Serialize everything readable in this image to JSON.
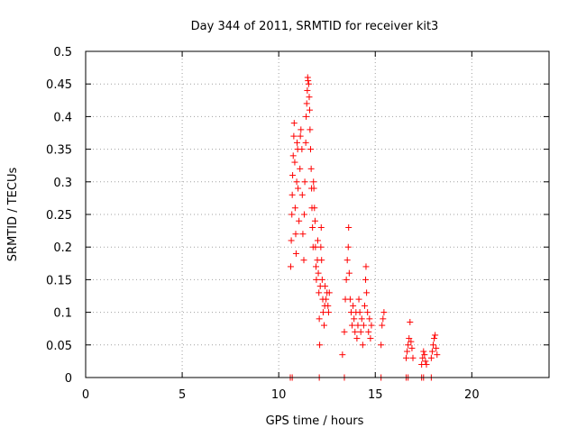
{
  "chart_data": {
    "type": "scatter",
    "title": "Day 344 of 2011, SRMTID for receiver kit3",
    "xlabel": "GPS time / hours",
    "ylabel": "SRMTID / TECUs",
    "xlim": [
      0,
      24
    ],
    "ylim": [
      0,
      0.5
    ],
    "xticks": [
      "0",
      "5",
      "10",
      "15",
      "20"
    ],
    "xtick_values": [
      0,
      5,
      10,
      15,
      20
    ],
    "yticks": [
      "0",
      "0.05",
      "0.1",
      "0.15",
      "0.2",
      "0.25",
      "0.3",
      "0.35",
      "0.4",
      "0.45",
      "0.5"
    ],
    "ytick_values": [
      0,
      0.05,
      0.1,
      0.15,
      0.2,
      0.25,
      0.3,
      0.35,
      0.4,
      0.45,
      0.5
    ],
    "grid": true,
    "legend": "none",
    "marker": "plus",
    "color": "#ff0000",
    "series": [
      {
        "points": [
          [
            10.62,
            0.17
          ],
          [
            10.65,
            0.21
          ],
          [
            10.68,
            0.25
          ],
          [
            10.7,
            0.28
          ],
          [
            10.72,
            0.31
          ],
          [
            10.75,
            0.34
          ],
          [
            10.78,
            0.37
          ],
          [
            10.8,
            0.39
          ],
          [
            10.83,
            0.33
          ],
          [
            10.85,
            0.26
          ],
          [
            10.88,
            0.22
          ],
          [
            10.9,
            0.19
          ],
          [
            10.93,
            0.3
          ],
          [
            10.95,
            0.36
          ],
          [
            10.98,
            0.35
          ],
          [
            11.0,
            0.29
          ],
          [
            11.05,
            0.24
          ],
          [
            11.1,
            0.32
          ],
          [
            11.12,
            0.37
          ],
          [
            11.15,
            0.38
          ],
          [
            11.2,
            0.35
          ],
          [
            11.22,
            0.28
          ],
          [
            11.25,
            0.22
          ],
          [
            11.3,
            0.18
          ],
          [
            11.32,
            0.25
          ],
          [
            11.35,
            0.3
          ],
          [
            11.4,
            0.36
          ],
          [
            11.42,
            0.4
          ],
          [
            11.45,
            0.42
          ],
          [
            11.48,
            0.44
          ],
          [
            11.5,
            0.46
          ],
          [
            11.52,
            0.455
          ],
          [
            11.55,
            0.45
          ],
          [
            11.58,
            0.43
          ],
          [
            11.6,
            0.41
          ],
          [
            11.62,
            0.38
          ],
          [
            11.65,
            0.35
          ],
          [
            11.68,
            0.32
          ],
          [
            11.7,
            0.29
          ],
          [
            11.72,
            0.26
          ],
          [
            11.75,
            0.23
          ],
          [
            11.78,
            0.2
          ],
          [
            11.8,
            0.3
          ],
          [
            11.82,
            0.29
          ],
          [
            11.85,
            0.26
          ],
          [
            11.88,
            0.24
          ],
          [
            11.9,
            0.2
          ],
          [
            11.93,
            0.17
          ],
          [
            11.95,
            0.15
          ],
          [
            12.0,
            0.18
          ],
          [
            12.02,
            0.21
          ],
          [
            12.05,
            0.16
          ],
          [
            12.08,
            0.13
          ],
          [
            12.1,
            0.09
          ],
          [
            12.12,
            0.05
          ],
          [
            12.15,
            0.14
          ],
          [
            12.18,
            0.2
          ],
          [
            12.2,
            0.23
          ],
          [
            12.22,
            0.18
          ],
          [
            12.25,
            0.15
          ],
          [
            12.28,
            0.12
          ],
          [
            12.3,
            0.1
          ],
          [
            12.35,
            0.08
          ],
          [
            12.38,
            0.11
          ],
          [
            12.4,
            0.14
          ],
          [
            12.45,
            0.12
          ],
          [
            12.5,
            0.13
          ],
          [
            12.55,
            0.11
          ],
          [
            12.58,
            0.1
          ],
          [
            12.62,
            0.13
          ],
          [
            13.3,
            0.035
          ],
          [
            13.4,
            0.07
          ],
          [
            13.45,
            0.12
          ],
          [
            13.5,
            0.15
          ],
          [
            13.55,
            0.18
          ],
          [
            13.6,
            0.2
          ],
          [
            13.62,
            0.23
          ],
          [
            13.65,
            0.16
          ],
          [
            13.7,
            0.12
          ],
          [
            13.75,
            0.1
          ],
          [
            13.8,
            0.08
          ],
          [
            13.85,
            0.11
          ],
          [
            13.9,
            0.09
          ],
          [
            13.95,
            0.07
          ],
          [
            14.0,
            0.1
          ],
          [
            14.05,
            0.06
          ],
          [
            14.1,
            0.08
          ],
          [
            14.15,
            0.12
          ],
          [
            14.2,
            0.1
          ],
          [
            14.25,
            0.07
          ],
          [
            14.3,
            0.09
          ],
          [
            14.35,
            0.05
          ],
          [
            14.4,
            0.08
          ],
          [
            14.45,
            0.11
          ],
          [
            14.5,
            0.15
          ],
          [
            14.52,
            0.17
          ],
          [
            14.55,
            0.13
          ],
          [
            14.6,
            0.1
          ],
          [
            14.65,
            0.07
          ],
          [
            14.7,
            0.09
          ],
          [
            14.75,
            0.06
          ],
          [
            14.8,
            0.08
          ],
          [
            15.3,
            0.05
          ],
          [
            15.35,
            0.08
          ],
          [
            15.4,
            0.09
          ],
          [
            15.45,
            0.1
          ],
          [
            16.6,
            0.03
          ],
          [
            16.65,
            0.04
          ],
          [
            16.7,
            0.05
          ],
          [
            16.75,
            0.06
          ],
          [
            16.8,
            0.085
          ],
          [
            16.85,
            0.055
          ],
          [
            16.9,
            0.045
          ],
          [
            16.95,
            0.03
          ],
          [
            17.4,
            0.02
          ],
          [
            17.45,
            0.03
          ],
          [
            17.5,
            0.04
          ],
          [
            17.55,
            0.035
          ],
          [
            17.6,
            0.025
          ],
          [
            17.65,
            0.02
          ],
          [
            17.9,
            0.03
          ],
          [
            17.95,
            0.04
          ],
          [
            18.0,
            0.05
          ],
          [
            18.05,
            0.06
          ],
          [
            18.1,
            0.065
          ],
          [
            18.15,
            0.045
          ],
          [
            18.2,
            0.035
          ]
        ]
      }
    ],
    "zero_points_x": [
      10.6,
      10.7,
      12.1,
      13.4,
      15.3,
      16.6,
      16.7,
      17.4,
      17.5,
      17.9
    ]
  }
}
